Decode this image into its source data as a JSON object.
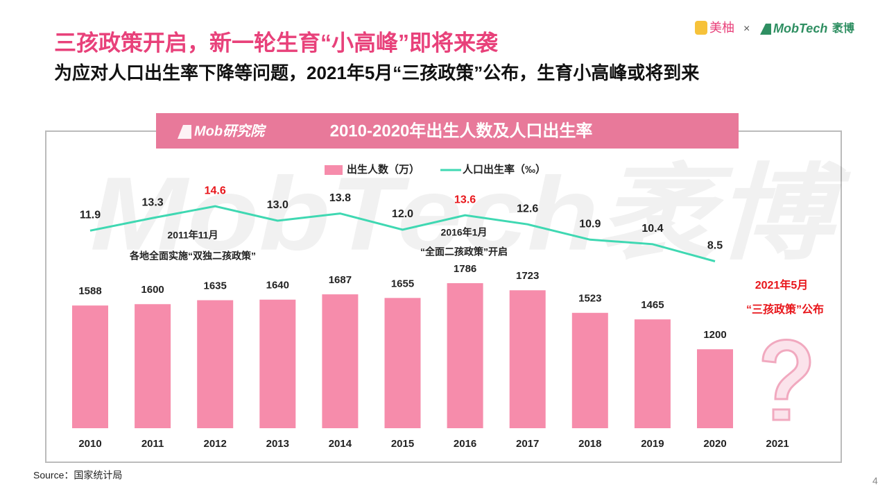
{
  "header": {
    "title": "三孩政策开启，新一轮生育“小高峰”即将来袭",
    "subtitle": "为应对人口出生率下降等问题，2021年5月“三孩政策”公布，生育小高峰或将到来"
  },
  "logo": {
    "brand1": "美柚",
    "cross": "×",
    "brand2": "MobTech",
    "brand2_cn": "袤博"
  },
  "chart_data": {
    "type": "bar+line",
    "panel_label": "Mob研究院",
    "title": "2010-2020年出生人数及人口出生率",
    "watermark": "MobTech袤博",
    "categories": [
      "2010",
      "2011",
      "2012",
      "2013",
      "2014",
      "2015",
      "2016",
      "2017",
      "2018",
      "2019",
      "2020",
      "2021"
    ],
    "series": [
      {
        "name": "出生人数（万）",
        "type": "bar",
        "color": "#f68cab",
        "values": [
          1588,
          1600,
          1635,
          1640,
          1687,
          1655,
          1786,
          1723,
          1523,
          1465,
          1200,
          null
        ]
      },
      {
        "name": "人口出生率（‰）",
        "type": "line",
        "axis": "y2",
        "color": "#3fd8b2",
        "values": [
          11.9,
          13.3,
          14.6,
          13.0,
          13.8,
          12.0,
          13.6,
          12.6,
          10.9,
          10.4,
          8.5,
          null
        ],
        "value_labels": [
          "11.9",
          "13.3",
          "14.6",
          "13.0",
          "13.8",
          "12.0",
          "13.6",
          "12.6",
          "10.9",
          "10.4",
          "8.5",
          null
        ],
        "label_colors": [
          "#222",
          "#222",
          "#e8161b",
          "#222",
          "#222",
          "#222",
          "#e8161b",
          "#222",
          "#222",
          "#222",
          "#222",
          null
        ]
      }
    ],
    "ylim": [
      500,
      2660
    ],
    "y2lim": [
      -10,
      17
    ],
    "annotations": [
      {
        "text": "2011年11月"
      },
      {
        "text": "各地全面实施“双独二孩政策”"
      },
      {
        "text": "2016年1月"
      },
      {
        "text": "“全面二孩政策”开启"
      },
      {
        "text": "2021年5月",
        "color": "#e8161b"
      },
      {
        "text": "“三孩政策”公布",
        "color": "#e8161b"
      }
    ]
  },
  "source": "Source：国家统计局",
  "page_number": 4
}
